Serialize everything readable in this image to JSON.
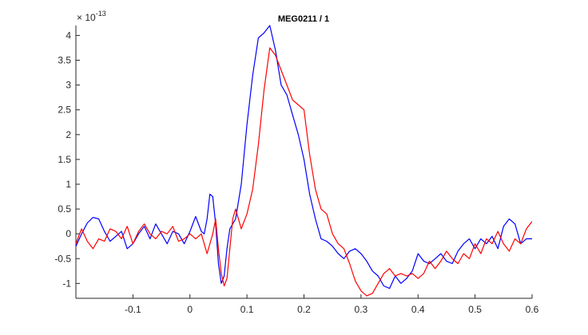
{
  "chart_data": {
    "type": "line",
    "title": "MEG0211 / 1",
    "exponent_base": "× 10",
    "exponent_power": "-13",
    "xlim": [
      -0.2,
      0.6
    ],
    "ylim": [
      -1.3,
      4.2
    ],
    "xticks": [
      -0.1,
      0,
      0.1,
      0.2,
      0.3,
      0.4,
      0.5,
      0.6
    ],
    "xtick_labels": [
      "-0.1",
      "0",
      "0.1",
      "0.2",
      "0.3",
      "0.4",
      "0.5",
      "0.6"
    ],
    "yticks": [
      -1,
      -0.5,
      0,
      0.5,
      1,
      1.5,
      2,
      2.5,
      3,
      3.5,
      4
    ],
    "ytick_labels": [
      "-1",
      "-0.5",
      "0",
      "0.5",
      "1",
      "1.5",
      "2",
      "2.5",
      "3",
      "3.5",
      "4"
    ],
    "grid": false,
    "series": [
      {
        "color": "#0000ff",
        "x": [
          -0.2,
          -0.19,
          -0.18,
          -0.17,
          -0.16,
          -0.15,
          -0.14,
          -0.13,
          -0.12,
          -0.11,
          -0.1,
          -0.09,
          -0.08,
          -0.07,
          -0.06,
          -0.05,
          -0.04,
          -0.03,
          -0.02,
          -0.01,
          0.0,
          0.01,
          0.02,
          0.025,
          0.03,
          0.035,
          0.04,
          0.045,
          0.05,
          0.055,
          0.06,
          0.065,
          0.07,
          0.08,
          0.09,
          0.1,
          0.11,
          0.12,
          0.13,
          0.14,
          0.15,
          0.16,
          0.17,
          0.18,
          0.19,
          0.2,
          0.21,
          0.22,
          0.23,
          0.24,
          0.25,
          0.26,
          0.27,
          0.28,
          0.29,
          0.3,
          0.31,
          0.32,
          0.33,
          0.34,
          0.35,
          0.36,
          0.37,
          0.38,
          0.39,
          0.4,
          0.41,
          0.42,
          0.43,
          0.44,
          0.45,
          0.46,
          0.47,
          0.48,
          0.49,
          0.5,
          0.51,
          0.52,
          0.53,
          0.54,
          0.55,
          0.56,
          0.57,
          0.58,
          0.59,
          0.6
        ],
        "y": [
          -0.25,
          0.0,
          0.22,
          0.33,
          0.3,
          0.05,
          -0.15,
          -0.05,
          0.05,
          -0.3,
          -0.2,
          0.0,
          0.15,
          -0.1,
          0.2,
          0.0,
          -0.2,
          0.05,
          0.0,
          -0.2,
          0.05,
          0.35,
          0.05,
          0.0,
          0.3,
          0.8,
          0.75,
          0.2,
          -0.6,
          -1.0,
          -0.85,
          -0.3,
          0.1,
          0.3,
          1.0,
          2.2,
          3.2,
          3.95,
          4.05,
          4.2,
          3.7,
          3.0,
          2.8,
          2.4,
          2.0,
          1.5,
          0.8,
          0.3,
          -0.1,
          -0.15,
          -0.25,
          -0.4,
          -0.5,
          -0.35,
          -0.3,
          -0.4,
          -0.55,
          -0.75,
          -0.85,
          -1.05,
          -1.1,
          -0.85,
          -1.0,
          -0.9,
          -0.75,
          -0.4,
          -0.55,
          -0.6,
          -0.5,
          -0.4,
          -0.55,
          -0.6,
          -0.35,
          -0.2,
          -0.1,
          -0.3,
          -0.1,
          -0.2,
          -0.05,
          -0.3,
          0.15,
          0.3,
          0.2,
          -0.2,
          -0.1,
          -0.1
        ]
      },
      {
        "color": "#ff0000",
        "x": [
          -0.2,
          -0.19,
          -0.18,
          -0.17,
          -0.16,
          -0.15,
          -0.14,
          -0.13,
          -0.12,
          -0.11,
          -0.1,
          -0.09,
          -0.08,
          -0.07,
          -0.06,
          -0.05,
          -0.04,
          -0.03,
          -0.02,
          -0.01,
          0.0,
          0.01,
          0.02,
          0.03,
          0.04,
          0.045,
          0.05,
          0.055,
          0.06,
          0.065,
          0.07,
          0.075,
          0.08,
          0.09,
          0.1,
          0.11,
          0.12,
          0.13,
          0.14,
          0.15,
          0.16,
          0.17,
          0.18,
          0.19,
          0.2,
          0.21,
          0.22,
          0.23,
          0.24,
          0.25,
          0.26,
          0.27,
          0.28,
          0.29,
          0.3,
          0.31,
          0.32,
          0.33,
          0.34,
          0.35,
          0.36,
          0.37,
          0.38,
          0.39,
          0.4,
          0.41,
          0.42,
          0.43,
          0.44,
          0.45,
          0.46,
          0.47,
          0.48,
          0.49,
          0.5,
          0.51,
          0.52,
          0.53,
          0.54,
          0.55,
          0.56,
          0.57,
          0.58,
          0.59,
          0.6
        ],
        "y": [
          -0.2,
          0.1,
          -0.15,
          -0.3,
          -0.1,
          -0.15,
          0.1,
          0.05,
          -0.1,
          0.15,
          -0.2,
          0.05,
          0.2,
          0.0,
          -0.1,
          0.05,
          0.0,
          0.15,
          -0.15,
          -0.1,
          0.0,
          -0.1,
          0.0,
          -0.4,
          0.0,
          0.3,
          -0.3,
          -0.8,
          -1.05,
          -0.9,
          -0.3,
          0.3,
          0.5,
          0.1,
          0.4,
          0.9,
          1.8,
          2.9,
          3.75,
          3.6,
          3.3,
          3.0,
          2.7,
          2.6,
          2.5,
          1.6,
          0.9,
          0.5,
          0.4,
          0.0,
          -0.2,
          -0.3,
          -0.6,
          -0.95,
          -1.15,
          -1.25,
          -1.2,
          -1.0,
          -0.8,
          -0.7,
          -0.85,
          -0.8,
          -0.85,
          -0.8,
          -0.9,
          -0.8,
          -0.55,
          -0.7,
          -0.55,
          -0.35,
          -0.5,
          -0.6,
          -0.4,
          -0.5,
          -0.2,
          -0.4,
          -0.1,
          -0.2,
          0.05,
          -0.2,
          -0.35,
          -0.1,
          -0.2,
          0.1,
          0.25
        ]
      }
    ]
  }
}
